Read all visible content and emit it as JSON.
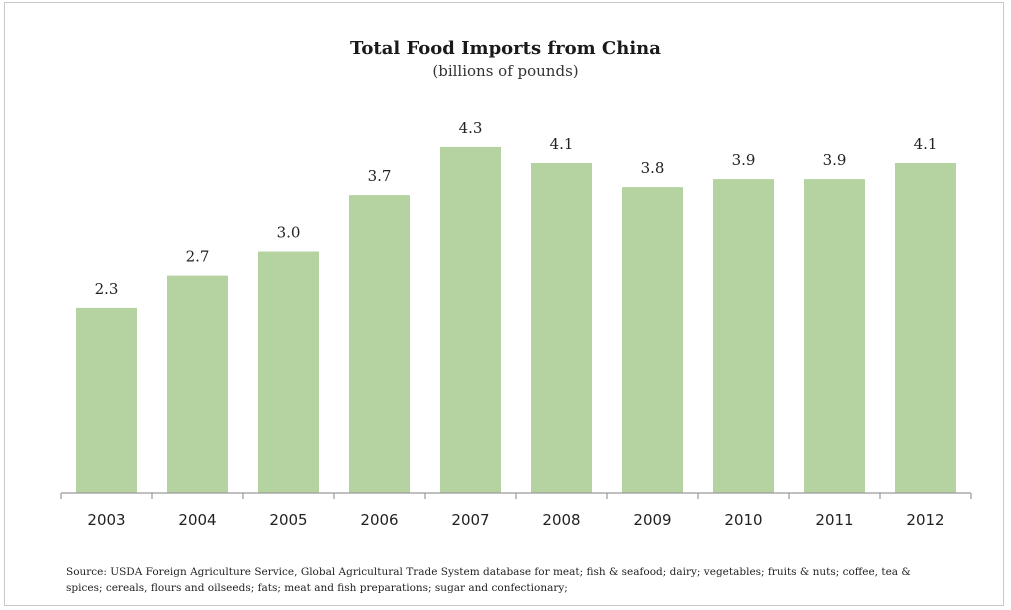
{
  "chart_data": {
    "type": "bar",
    "title": "Total Food Imports from China",
    "subtitle": "(billions of pounds)",
    "xlabel": "",
    "ylabel": "",
    "categories": [
      "2003",
      "2004",
      "2005",
      "2006",
      "2007",
      "2008",
      "2009",
      "2010",
      "2011",
      "2012"
    ],
    "values": [
      2.3,
      2.7,
      3.0,
      3.7,
      4.3,
      4.1,
      3.8,
      3.9,
      3.9,
      4.1
    ],
    "value_labels": [
      "2.3",
      "2.7",
      "3.0",
      "3.7",
      "4.3",
      "4.1",
      "3.8",
      "3.9",
      "3.9",
      "4.1"
    ],
    "ylim": [
      0,
      4.5
    ],
    "grid": false,
    "legend": "none",
    "bar_color": "#b5d3a0",
    "axis_color": "#9a9a9a"
  },
  "source": "Source: USDA Foreign Agriculture Service, Global Agricultural Trade System database for meat; fish & seafood; dairy; vegetables; fruits & nuts; coffee, tea & spices; cereals, flours and oilseeds; fats; meat and fish preparations; sugar and confectionary;"
}
